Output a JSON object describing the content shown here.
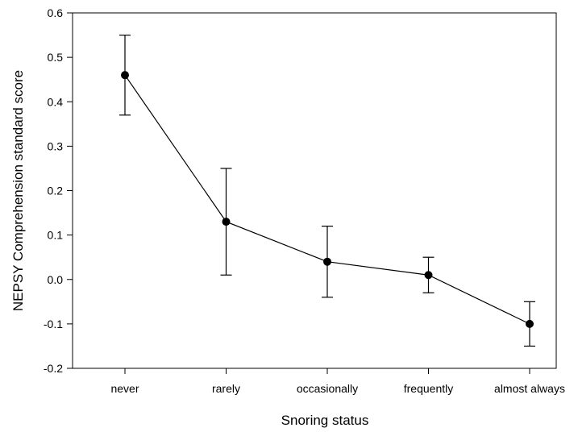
{
  "chart_data": {
    "type": "line",
    "title": "",
    "xlabel": "Snoring status",
    "ylabel": "NEPSY Comprehension standard score",
    "categories": [
      "never",
      "rarely",
      "occasionally",
      "frequently",
      "almost always"
    ],
    "series": [
      {
        "values": [
          0.46,
          0.13,
          0.04,
          0.01,
          -0.1
        ],
        "error_low": [
          0.37,
          0.01,
          -0.04,
          -0.03,
          -0.15
        ],
        "error_high": [
          0.55,
          0.25,
          0.12,
          0.05,
          -0.05
        ]
      }
    ],
    "ylim": [
      -0.2,
      0.6
    ],
    "yticks": [
      -0.2,
      -0.1,
      0.0,
      0.1,
      0.2,
      0.3,
      0.4,
      0.5,
      0.6
    ],
    "ytick_labels": [
      "-0.2",
      "-0.1",
      "0.0",
      "0.1",
      "0.2",
      "0.3",
      "0.4",
      "0.5",
      "0.6"
    ],
    "grid": false,
    "legend": "none",
    "colors": {
      "line": "#000000",
      "marker": "#000000",
      "axis": "#000000"
    }
  }
}
